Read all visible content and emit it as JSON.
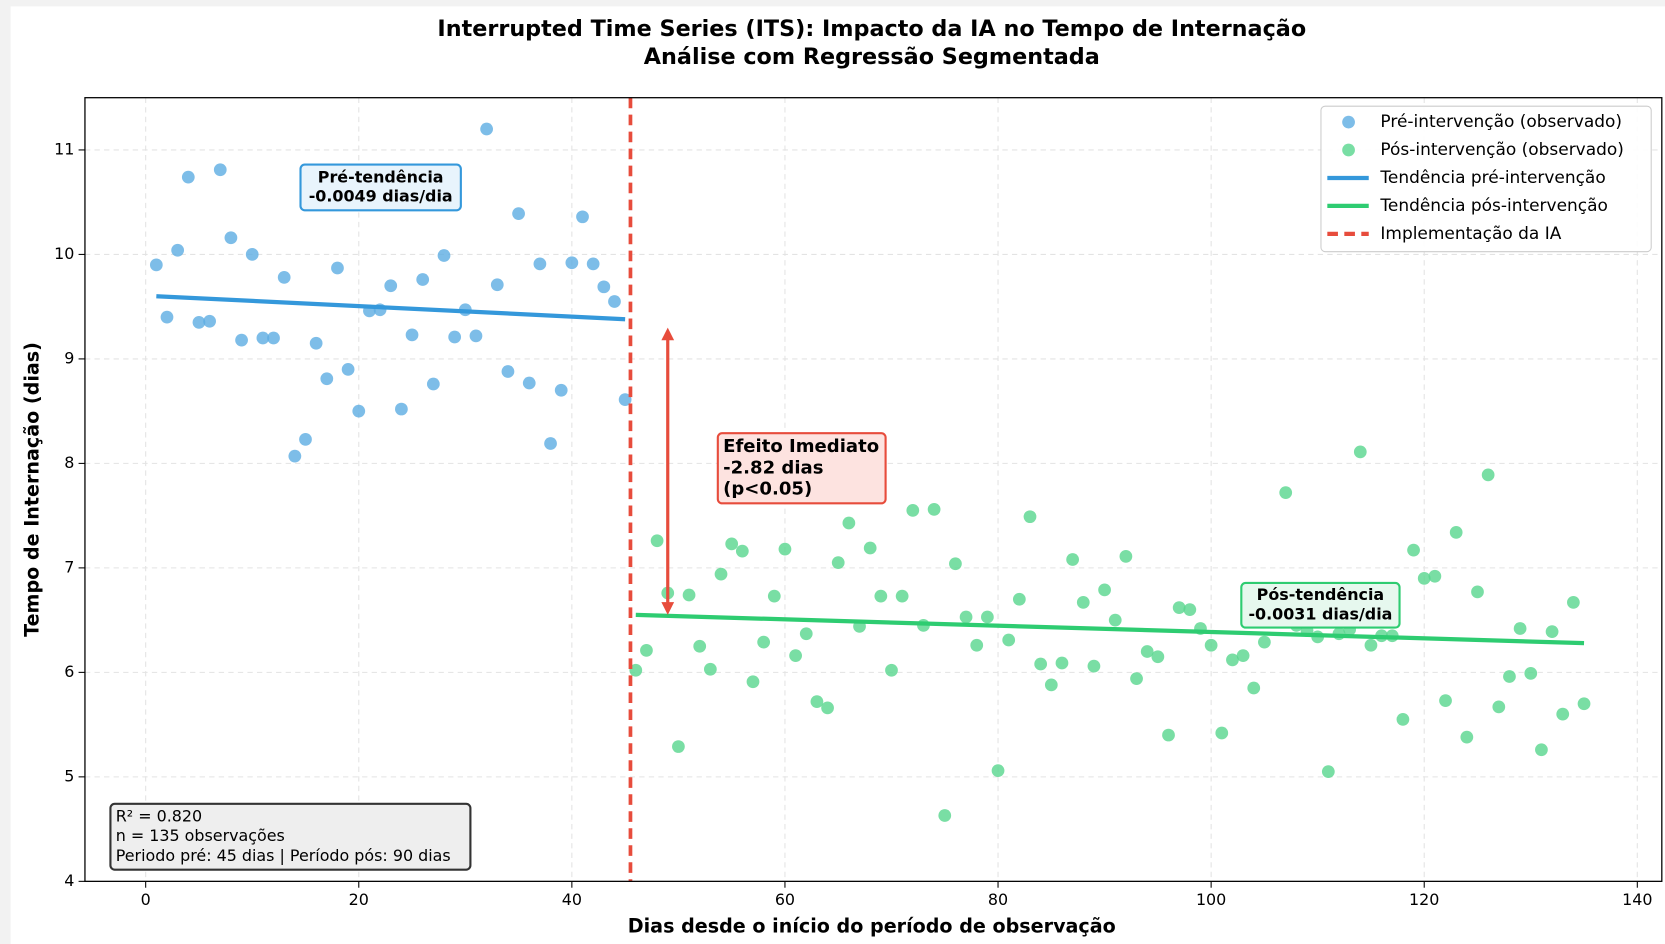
{
  "chart_data": {
    "type": "scatter",
    "title": "Interrupted Time Series (ITS): Impacto da IA no Tempo de Internação",
    "subtitle": "Análise com Regressão Segmentada",
    "x_label": "Dias desde o início do período de observação",
    "y_label": "Tempo de Internação (dias)",
    "xlim": [
      -5.7,
      142.3
    ],
    "ylim": [
      4,
      11.5
    ],
    "xticks": [
      0,
      20,
      40,
      60,
      80,
      100,
      120,
      140
    ],
    "yticks": [
      4,
      5,
      6,
      7,
      8,
      9,
      10,
      11
    ],
    "grid": true,
    "legend": "upper right",
    "series": [
      {
        "name": "Pré-intervenção (observado)",
        "kind": "points",
        "color": "#5dade2",
        "x": [
          1,
          2,
          3,
          4,
          5,
          6,
          7,
          8,
          9,
          10,
          11,
          12,
          13,
          14,
          15,
          16,
          17,
          18,
          19,
          20,
          21,
          22,
          23,
          24,
          25,
          26,
          27,
          28,
          29,
          30,
          31,
          32,
          33,
          34,
          35,
          36,
          37,
          38,
          39,
          40,
          41,
          42,
          43,
          44,
          45
        ],
        "values": [
          9.9,
          9.4,
          10.04,
          10.74,
          9.35,
          9.36,
          10.81,
          10.16,
          9.18,
          10.0,
          9.2,
          9.2,
          9.78,
          8.07,
          8.23,
          9.15,
          8.81,
          9.87,
          8.9,
          8.5,
          9.46,
          9.47,
          9.7,
          8.52,
          9.23,
          9.76,
          8.76,
          9.99,
          9.21,
          9.47,
          9.22,
          11.2,
          9.71,
          8.88,
          10.39,
          8.77,
          9.91,
          8.19,
          8.7,
          9.92,
          10.36,
          9.91,
          9.69,
          9.55,
          8.61
        ]
      },
      {
        "name": "Pós-intervenção (observado)",
        "kind": "points",
        "color": "#58d68d",
        "x": [
          46,
          47,
          48,
          49,
          50,
          51,
          52,
          53,
          54,
          55,
          56,
          57,
          58,
          59,
          60,
          61,
          62,
          63,
          64,
          65,
          66,
          67,
          68,
          69,
          70,
          71,
          72,
          73,
          74,
          75,
          76,
          77,
          78,
          79,
          80,
          81,
          82,
          83,
          84,
          85,
          86,
          87,
          88,
          89,
          90,
          91,
          92,
          93,
          94,
          95,
          96,
          97,
          98,
          99,
          100,
          101,
          102,
          103,
          104,
          105,
          106,
          107,
          108,
          109,
          110,
          111,
          112,
          113,
          114,
          115,
          116,
          117,
          118,
          119,
          120,
          121,
          122,
          123,
          124,
          125,
          126,
          127,
          128,
          129,
          130,
          131,
          132,
          133,
          134,
          135
        ],
        "values": [
          6.02,
          6.21,
          7.26,
          6.76,
          5.29,
          6.74,
          6.25,
          6.03,
          6.94,
          7.23,
          7.16,
          5.91,
          6.29,
          6.73,
          7.18,
          6.16,
          6.37,
          5.72,
          5.66,
          7.05,
          7.43,
          6.44,
          7.19,
          6.73,
          6.02,
          6.73,
          7.55,
          6.45,
          7.56,
          4.63,
          7.04,
          6.53,
          6.26,
          6.53,
          5.06,
          6.31,
          6.7,
          7.49,
          6.08,
          5.88,
          6.09,
          7.08,
          6.67,
          6.06,
          6.79,
          6.5,
          7.11,
          5.94,
          6.2,
          6.15,
          5.4,
          6.62,
          6.6,
          6.42,
          6.26,
          5.42,
          6.12,
          6.16,
          5.85,
          6.29,
          6.55,
          7.72,
          6.45,
          6.4,
          6.34,
          5.05,
          6.37,
          6.41,
          8.11,
          6.26,
          6.35,
          6.35,
          5.55,
          7.17,
          6.9,
          6.92,
          5.73,
          7.34,
          5.38,
          6.77,
          7.89,
          5.67,
          5.96,
          6.42,
          5.99,
          5.26,
          6.39,
          5.6,
          6.67,
          5.7
        ]
      },
      {
        "name": "Tendência pré-intervenção",
        "kind": "line",
        "color": "#3498db",
        "x": [
          1,
          45
        ],
        "values": [
          9.6,
          9.38
        ]
      },
      {
        "name": "Tendência pós-intervenção",
        "kind": "line",
        "color": "#2ecc71",
        "x": [
          46,
          135
        ],
        "values": [
          6.55,
          6.28
        ]
      }
    ],
    "vline": {
      "name": "Implementação da IA",
      "x": 45.5,
      "color": "#e74c3c"
    },
    "arrow": {
      "x": 49,
      "from": 9.3,
      "to": 6.55,
      "color": "#e74c3c"
    },
    "annotations": [
      {
        "lines": [
          "Pré-tendência",
          "-0.0049 dias/dia"
        ],
        "color": "#3498db",
        "fill": "#e8f4fc"
      },
      {
        "lines": [
          "Efeito Imediato",
          "-2.82 dias",
          "(p<0.05)"
        ],
        "color": "#e74c3c",
        "fill": "#fde3e0"
      },
      {
        "lines": [
          "Pós-tendência",
          "-0.0031 dias/dia"
        ],
        "color": "#2ecc71",
        "fill": "#e6f8ee"
      },
      {
        "lines": [
          "R² = 0.820",
          "n = 135 observações",
          "Periodo pré: 45 dias | Período pós: 90 dias"
        ],
        "color": "#333333",
        "fill": "#eeeeee"
      }
    ]
  }
}
